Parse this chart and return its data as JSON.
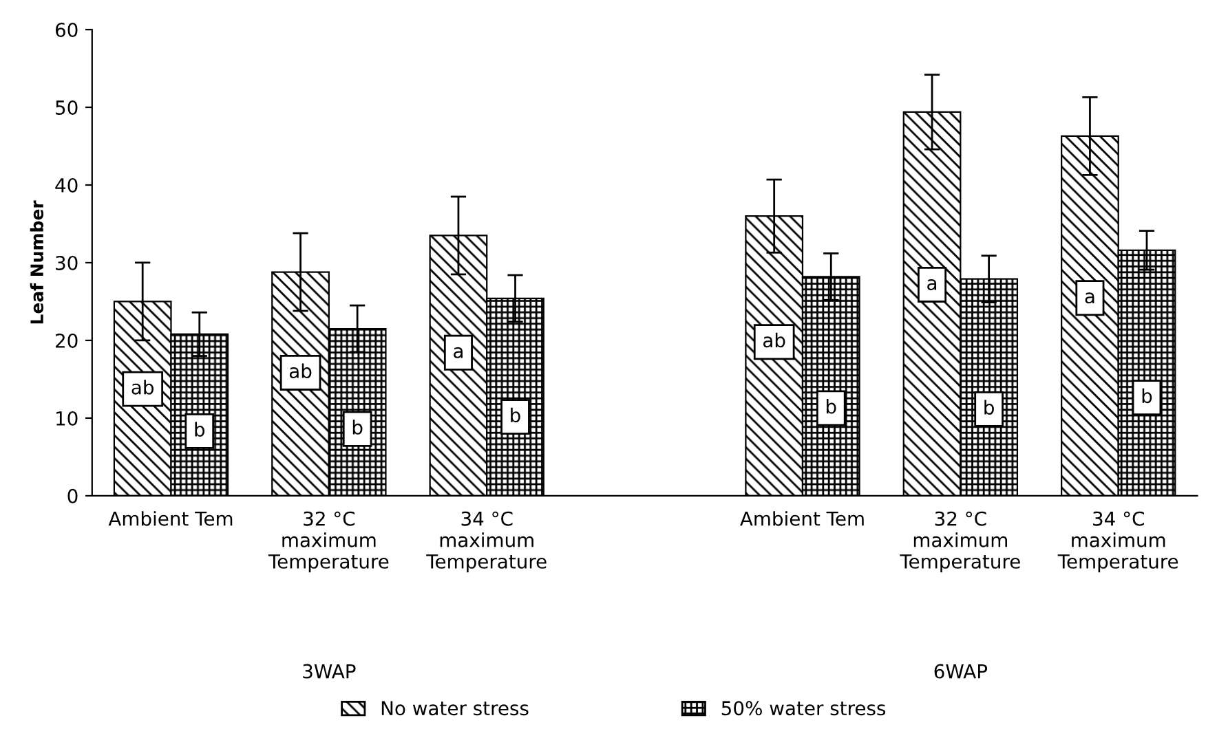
{
  "chart_data": {
    "type": "bar",
    "ylabel": "Leaf Number",
    "categories": [
      "Ambient Tem",
      "32 °C\nmaximum\nTemperature",
      "34 °C\nmaximum\nTemperature",
      null,
      "Ambient Tem",
      "32 °C\nmaximum\nTemperature",
      "34 °C\nmaximum\nTemperature"
    ],
    "series": [
      {
        "name": "No water stress",
        "color": "#000000",
        "values": [
          25.0,
          28.8,
          33.5,
          null,
          36.0,
          49.4,
          46.3
        ],
        "errors": [
          5,
          5,
          5,
          null,
          4.7,
          4.8,
          5
        ],
        "value_labels": [
          "ab",
          "ab",
          "a",
          null,
          "ab",
          "a",
          "a"
        ]
      },
      {
        "name": "50% water stress",
        "color": "#000000",
        "values": [
          20.8,
          21.5,
          25.4,
          null,
          28.2,
          27.9,
          31.6
        ],
        "errors": [
          2.8,
          3,
          3,
          null,
          3,
          3,
          2.5
        ],
        "value_labels": [
          "b",
          "b",
          "b",
          null,
          "b",
          "b",
          "b"
        ]
      }
    ],
    "annotations": [
      "3WAP",
      "6WAP"
    ],
    "ylim": [
      0,
      60
    ],
    "yticks": [
      0,
      10,
      20,
      30,
      40,
      50,
      60
    ],
    "grid": false,
    "legend": "bottom"
  }
}
